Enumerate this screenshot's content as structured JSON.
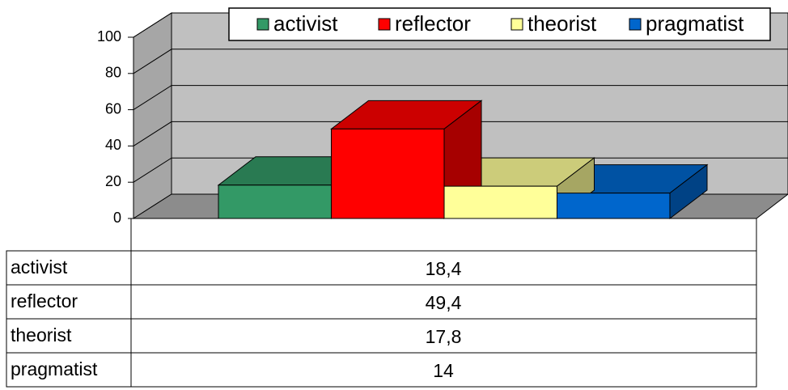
{
  "chart_data": {
    "type": "bar",
    "categories": [
      "activist",
      "reflector",
      "theorist",
      "pragmatist"
    ],
    "values": [
      18.4,
      49.4,
      17.8,
      14
    ],
    "value_labels": [
      "18,4",
      "49,4",
      "17,8",
      "14"
    ],
    "colors": [
      "#339966",
      "#ff0000",
      "#ffff99",
      "#0066cc"
    ],
    "ylim": [
      0,
      100
    ],
    "yticks": [
      0,
      20,
      40,
      60,
      80,
      100
    ],
    "grid": true
  }
}
